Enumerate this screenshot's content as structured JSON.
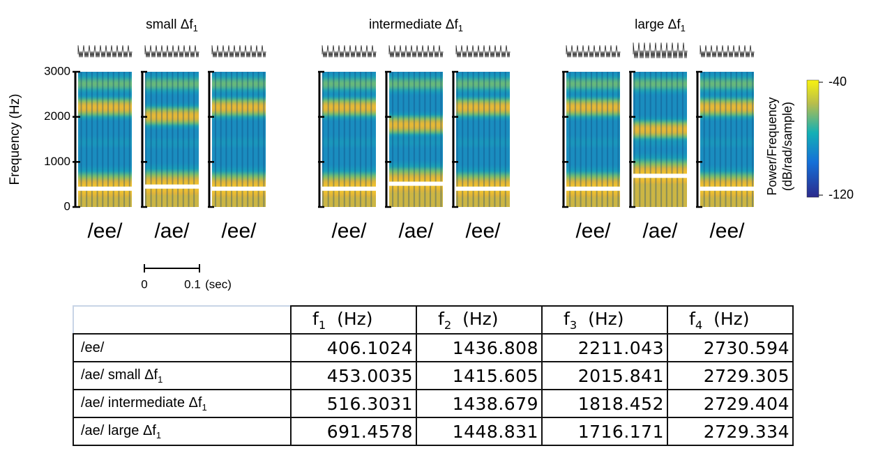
{
  "figure": {
    "groups": [
      {
        "title": {
          "text": "small Δf",
          "sub": "1"
        },
        "panels": [
          "/ee/",
          "/ae/",
          "/ee/"
        ]
      },
      {
        "title": {
          "text": "intermediate Δf",
          "sub": "1"
        },
        "panels": [
          "/ee/",
          "/ae/",
          "/ee/"
        ]
      },
      {
        "title": {
          "text": "large Δf",
          "sub": "1"
        },
        "panels": [
          "/ee/",
          "/ae/",
          "/ee/"
        ]
      }
    ],
    "y_axis": {
      "label": "Frequency (Hz)",
      "ticks": [
        0,
        1000,
        2000,
        3000
      ]
    },
    "colorbar": {
      "label": [
        "Power/Frequency",
        "(dB/rad/sample)"
      ],
      "ticks": [
        -40,
        -120
      ]
    },
    "time_scale": {
      "ticks": [
        0,
        0.1
      ],
      "unit": "(sec)"
    }
  },
  "table": {
    "header": [
      {
        "text": "f",
        "sub": "1",
        "unit": "(Hz)"
      },
      {
        "text": "f",
        "sub": "2",
        "unit": "(Hz)"
      },
      {
        "text": "f",
        "sub": "3",
        "unit": "(Hz)"
      },
      {
        "text": "f",
        "sub": "4",
        "unit": "(Hz)"
      }
    ],
    "rows": [
      {
        "label": {
          "text": "/ee/"
        },
        "values": [
          406.1024,
          1436.808,
          2211.043,
          2730.594
        ]
      },
      {
        "label": {
          "text": "/ae/ small Δf",
          "sub": "1"
        },
        "values": [
          453.0035,
          1415.605,
          2015.841,
          2729.305
        ]
      },
      {
        "label": {
          "text": "/ae/ intermediate Δf",
          "sub": "1"
        },
        "values": [
          516.3031,
          1438.679,
          1818.452,
          2729.404
        ]
      },
      {
        "label": {
          "text": "/ae/ large Δf",
          "sub": "1"
        },
        "values": [
          691.4578,
          1448.831,
          1716.171,
          2729.334
        ]
      }
    ]
  }
}
